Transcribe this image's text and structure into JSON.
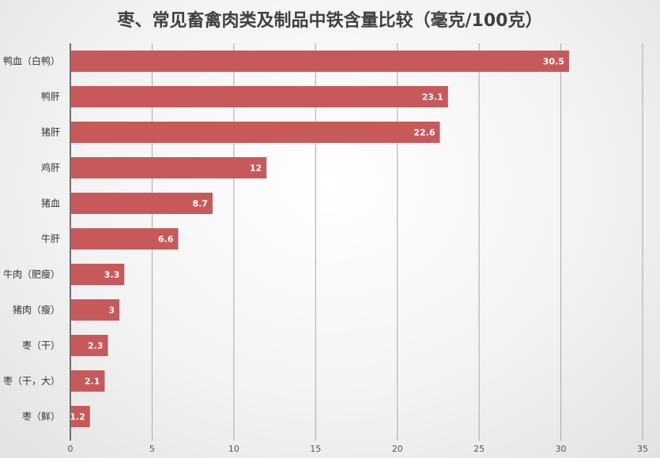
{
  "chart_data": {
    "type": "bar",
    "orientation": "horizontal",
    "title": "枣、常见畜禽肉类及制品中铁含量比较（毫克/100克）",
    "categories": [
      "鸭血（白鸭）",
      "鸭肝",
      "猪肝",
      "鸡肝",
      "猪血",
      "牛肝",
      "牛肉（肥瘦）",
      "猪肉（瘦）",
      "枣（干）",
      "枣（干，大）",
      "枣（鲜）"
    ],
    "values": [
      30.5,
      23.1,
      22.6,
      12,
      8.7,
      6.6,
      3.3,
      3,
      2.3,
      2.1,
      1.2
    ],
    "data_labels": [
      "30.5",
      "23.1",
      "22.6",
      "12",
      "8.7",
      "6.6",
      "3.3",
      "3",
      "2.3",
      "2.1",
      "1.2"
    ],
    "xticks": [
      "0",
      "5",
      "10",
      "15",
      "20",
      "25",
      "30",
      "35"
    ],
    "xlim": [
      0,
      35
    ],
    "grid": true,
    "legend": "none",
    "bar_color": "#c8595b"
  }
}
